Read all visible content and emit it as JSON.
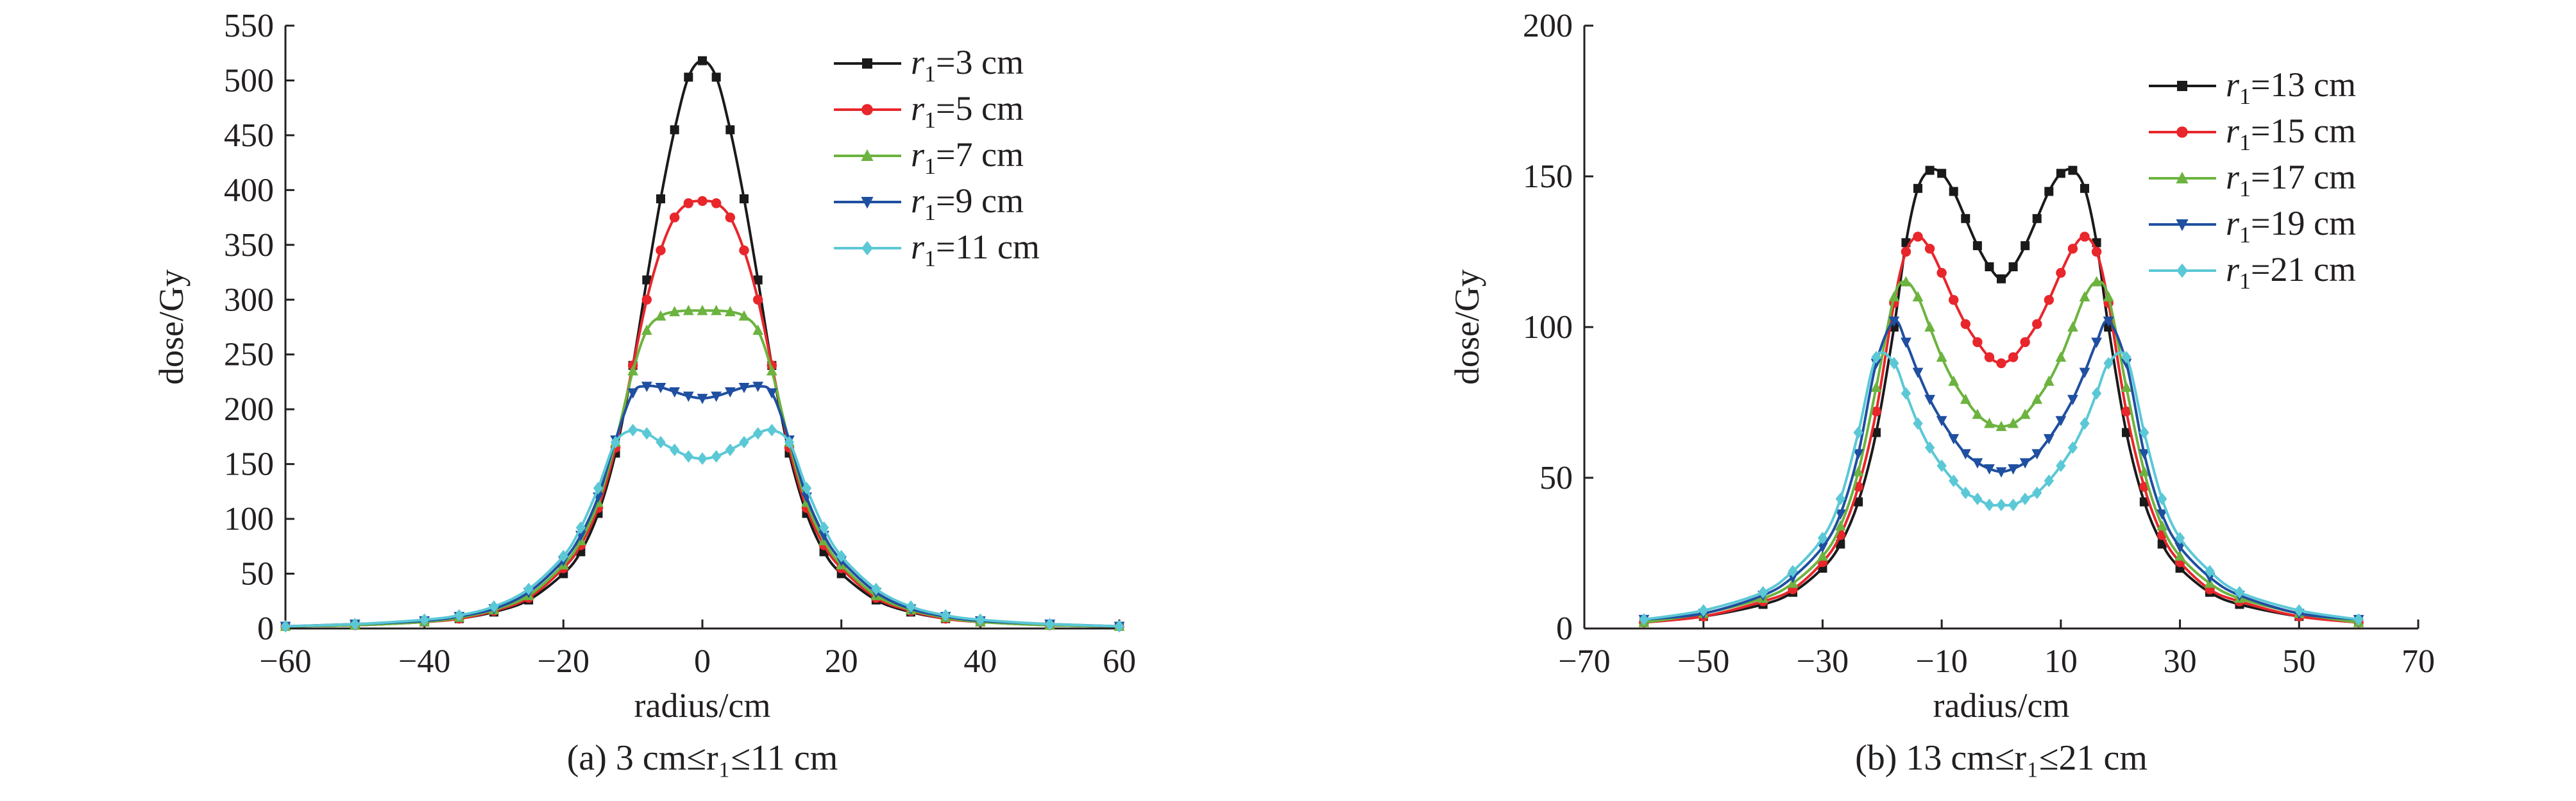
{
  "chart_data": [
    {
      "type": "line",
      "panel_caption": "(a) 3 cm≤r₁≤11 cm",
      "xlabel": "radius/cm",
      "ylabel": "dose/Gy",
      "xlim": [
        -60,
        60
      ],
      "ylim": [
        0,
        550
      ],
      "x_ticks": [
        "−60",
        "−40",
        "−20",
        "0",
        "20",
        "40",
        "60"
      ],
      "x_tick_values": [
        -60,
        -40,
        -20,
        0,
        20,
        40,
        60
      ],
      "y_ticks": [
        "0",
        "50",
        "100",
        "150",
        "200",
        "250",
        "300",
        "350",
        "400",
        "450",
        "500",
        "550"
      ],
      "y_tick_values": [
        0,
        50,
        100,
        150,
        200,
        250,
        300,
        350,
        400,
        450,
        500,
        550
      ],
      "legend_position": "top-right",
      "x": [
        -60,
        -50,
        -40,
        -35,
        -30,
        -25,
        -20,
        -17.5,
        -15,
        -12.5,
        -10,
        -8,
        -6,
        -4,
        -2,
        0,
        2,
        4,
        6,
        8,
        10,
        12.5,
        15,
        17.5,
        20,
        25,
        30,
        35,
        40,
        50,
        60
      ],
      "series": [
        {
          "name": "r₁=3 cm",
          "legend_var": "r",
          "legend_sub": "1",
          "legend_rest": "=3 cm",
          "color": "#1a1a1a",
          "marker": "square",
          "values": [
            2,
            3,
            6,
            9,
            15,
            26,
            50,
            70,
            105,
            160,
            240,
            318,
            392,
            455,
            503,
            518,
            503,
            455,
            392,
            318,
            240,
            160,
            105,
            70,
            50,
            26,
            15,
            9,
            6,
            3,
            2
          ]
        },
        {
          "name": "r₁=5 cm",
          "legend_var": "r",
          "legend_sub": "1",
          "legend_rest": "=5 cm",
          "color": "#e8262b",
          "marker": "circle",
          "values": [
            2,
            3,
            6,
            9,
            16,
            28,
            55,
            76,
            110,
            165,
            240,
            300,
            345,
            375,
            388,
            390,
            388,
            375,
            345,
            300,
            240,
            165,
            110,
            76,
            55,
            28,
            16,
            9,
            6,
            3,
            2
          ]
        },
        {
          "name": "r₁=7 cm",
          "legend_var": "r",
          "legend_sub": "1",
          "legend_rest": "=7 cm",
          "color": "#6cb33f",
          "marker": "triangle-up",
          "values": [
            2,
            3,
            6,
            10,
            17,
            30,
            58,
            80,
            115,
            170,
            235,
            272,
            285,
            289,
            290,
            290,
            290,
            289,
            285,
            272,
            235,
            170,
            115,
            80,
            58,
            30,
            17,
            10,
            6,
            3,
            2
          ]
        },
        {
          "name": "r₁=9 cm",
          "legend_var": "r",
          "legend_sub": "1",
          "legend_rest": "=9 cm",
          "color": "#1f4fa0",
          "marker": "triangle-down",
          "values": [
            2,
            4,
            7,
            11,
            18,
            33,
            62,
            85,
            120,
            172,
            215,
            221,
            220,
            216,
            212,
            210,
            212,
            216,
            220,
            221,
            215,
            172,
            120,
            85,
            62,
            33,
            18,
            11,
            7,
            4,
            2
          ]
        },
        {
          "name": "r₁=11 cm",
          "legend_var": "r",
          "legend_sub": "1",
          "legend_rest": "=11 cm",
          "color": "#5bc8d6",
          "marker": "diamond",
          "values": [
            2,
            4,
            8,
            12,
            20,
            36,
            66,
            92,
            128,
            170,
            181,
            178,
            170,
            163,
            157,
            155,
            157,
            163,
            170,
            178,
            181,
            170,
            128,
            92,
            66,
            36,
            20,
            12,
            8,
            4,
            2
          ]
        }
      ]
    },
    {
      "type": "line",
      "panel_caption": "(b) 13 cm≤r₁≤21 cm",
      "xlabel": "radius/cm",
      "ylabel": "dose/Gy",
      "xlim": [
        -70,
        70
      ],
      "ylim": [
        0,
        200
      ],
      "x_ticks": [
        "−70",
        "−50",
        "−30",
        "−10",
        "10",
        "30",
        "50",
        "70"
      ],
      "x_tick_values": [
        -70,
        -50,
        -30,
        -10,
        10,
        30,
        50,
        70
      ],
      "y_ticks": [
        "0",
        "50",
        "100",
        "150",
        "200"
      ],
      "y_tick_values": [
        0,
        50,
        100,
        150,
        200
      ],
      "legend_position": "top-right",
      "x": [
        -60,
        -50,
        -40,
        -35,
        -30,
        -27,
        -24,
        -21,
        -18,
        -16,
        -14,
        -12,
        -10,
        -8,
        -6,
        -4,
        -2,
        0,
        2,
        4,
        6,
        8,
        10,
        12,
        14,
        16,
        18,
        21,
        24,
        27,
        30,
        35,
        40,
        50,
        60
      ],
      "series": [
        {
          "name": "r₁=13 cm",
          "legend_var": "r",
          "legend_sub": "1",
          "legend_rest": "=13 cm",
          "color": "#1a1a1a",
          "marker": "square",
          "values": [
            2,
            4,
            8,
            12,
            20,
            28,
            42,
            65,
            100,
            128,
            146,
            152,
            151,
            145,
            136,
            127,
            120,
            116,
            120,
            127,
            136,
            145,
            151,
            152,
            146,
            128,
            100,
            65,
            42,
            28,
            20,
            12,
            8,
            4,
            2
          ]
        },
        {
          "name": "r₁=15 cm",
          "legend_var": "r",
          "legend_sub": "1",
          "legend_rest": "=15 cm",
          "color": "#e8262b",
          "marker": "circle",
          "values": [
            2,
            4,
            9,
            13,
            22,
            31,
            47,
            72,
            108,
            125,
            130,
            126,
            118,
            109,
            101,
            95,
            90,
            88,
            90,
            95,
            101,
            109,
            118,
            126,
            130,
            125,
            108,
            72,
            47,
            31,
            22,
            13,
            9,
            4,
            2
          ]
        },
        {
          "name": "r₁=17 cm",
          "legend_var": "r",
          "legend_sub": "1",
          "legend_rest": "=17 cm",
          "color": "#6cb33f",
          "marker": "triangle-up",
          "values": [
            2,
            5,
            10,
            15,
            24,
            34,
            52,
            80,
            110,
            115,
            110,
            100,
            90,
            82,
            76,
            71,
            68,
            67,
            68,
            71,
            76,
            82,
            90,
            100,
            110,
            115,
            110,
            80,
            52,
            34,
            24,
            15,
            10,
            5,
            2
          ]
        },
        {
          "name": "r₁=19 cm",
          "legend_var": "r",
          "legend_sub": "1",
          "legend_rest": "=19 cm",
          "color": "#1f4fa0",
          "marker": "triangle-down",
          "values": [
            3,
            5,
            11,
            17,
            27,
            38,
            58,
            88,
            102,
            95,
            85,
            76,
            69,
            63,
            58,
            55,
            53,
            52,
            53,
            55,
            58,
            63,
            69,
            76,
            85,
            95,
            102,
            88,
            58,
            38,
            27,
            17,
            11,
            5,
            3
          ]
        },
        {
          "name": "r₁=21 cm",
          "legend_var": "r",
          "legend_sub": "1",
          "legend_rest": "=21 cm",
          "color": "#5bc8d6",
          "marker": "diamond",
          "values": [
            3,
            6,
            12,
            19,
            30,
            43,
            65,
            90,
            88,
            78,
            68,
            60,
            54,
            49,
            45,
            43,
            41,
            41,
            41,
            43,
            45,
            49,
            54,
            60,
            68,
            78,
            88,
            90,
            65,
            43,
            30,
            19,
            12,
            6,
            3
          ]
        }
      ]
    }
  ]
}
